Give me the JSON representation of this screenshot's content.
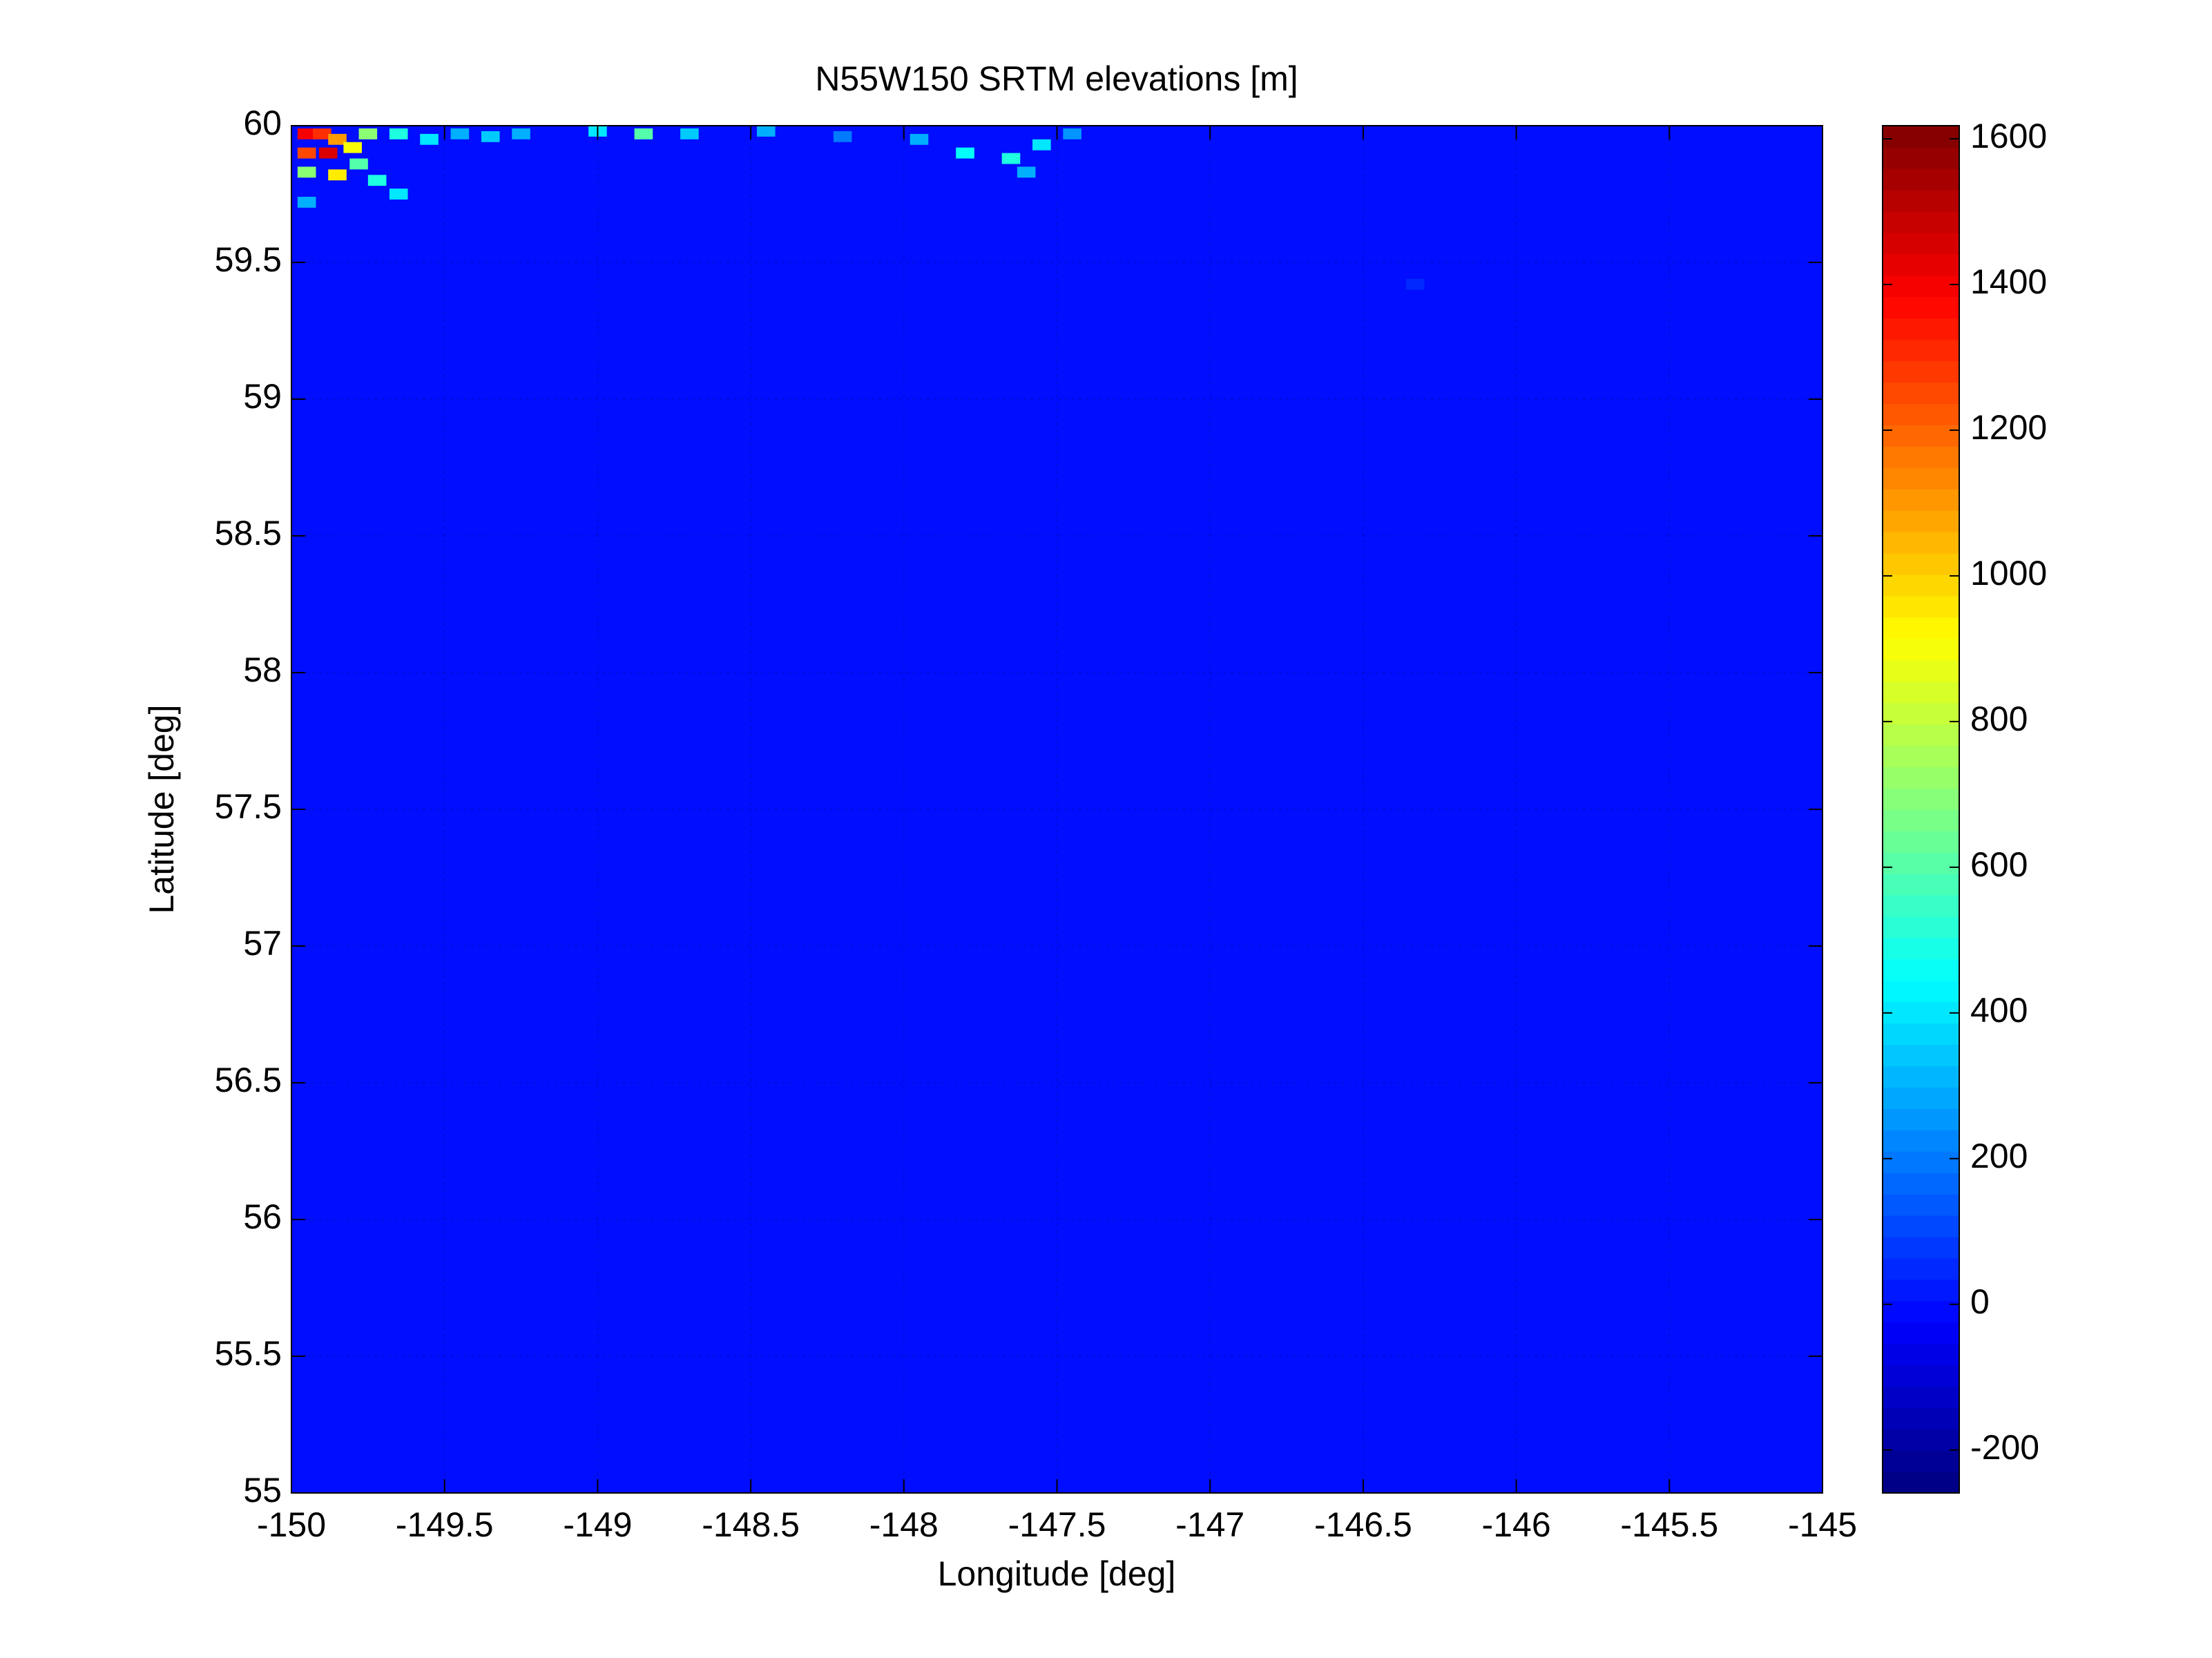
{
  "chart_data": {
    "type": "heatmap",
    "title": "N55W150 SRTM elevations [m]",
    "x_label": "Longitude [deg]",
    "y_label": "Latitude [deg]",
    "xlim": [
      -150,
      -145
    ],
    "ylim": [
      55,
      60
    ],
    "xticks": [
      -150,
      -149.5,
      -149,
      -148.5,
      -148,
      -147.5,
      -147,
      -146.5,
      -146,
      -145.5,
      -145
    ],
    "yticks": [
      55,
      55.5,
      56,
      56.5,
      57,
      57.5,
      58,
      58.5,
      59,
      59.5,
      60
    ],
    "clim": [
      -259,
      1618
    ],
    "cticks": [
      -200,
      0,
      200,
      400,
      600,
      800,
      1000,
      1200,
      1400,
      1600
    ],
    "colormap": "jet",
    "grid": true,
    "fill_value": 0,
    "x": [
      -149.95,
      -149.9,
      -149.85,
      -149.95,
      -149.88,
      -149.8,
      -149.95,
      -149.85,
      -149.78,
      -149.72,
      -149.65,
      -149.75,
      -149.65,
      -149.55,
      -149.45,
      -149.35,
      -149.25,
      -149.0,
      -148.85,
      -148.7,
      -148.45,
      -148.2,
      -147.95,
      -147.8,
      -147.65,
      -147.55,
      -147.45,
      -147.6,
      -149.95,
      -146.33
    ],
    "y": [
      59.97,
      59.97,
      59.95,
      59.9,
      59.9,
      59.92,
      59.83,
      59.82,
      59.86,
      59.8,
      59.75,
      59.97,
      59.97,
      59.95,
      59.97,
      59.96,
      59.97,
      59.98,
      59.97,
      59.97,
      59.98,
      59.96,
      59.95,
      59.9,
      59.88,
      59.93,
      59.97,
      59.83,
      59.72,
      59.42
    ],
    "values": [
      1400,
      1300,
      1100,
      1250,
      1450,
      900,
      700,
      950,
      600,
      500,
      400,
      700,
      500,
      400,
      300,
      350,
      300,
      400,
      600,
      350,
      300,
      200,
      300,
      450,
      500,
      400,
      250,
      300,
      300,
      50
    ]
  }
}
